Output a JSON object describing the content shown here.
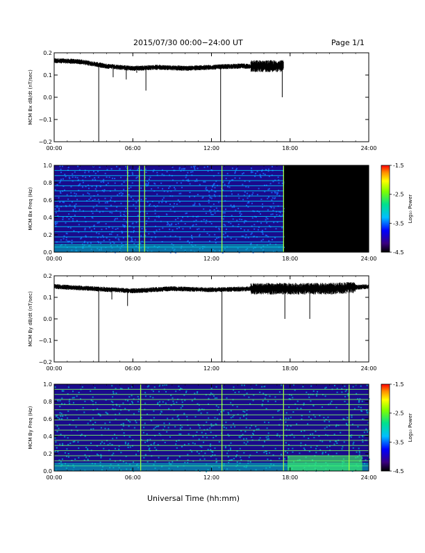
{
  "header": {
    "date_range": "2015/07/30  00:00−24:00 UT",
    "page": "Page 1/1"
  },
  "x_axis": {
    "tick_labels": [
      "00:00",
      "06:00",
      "12:00",
      "18:00",
      "24:00"
    ],
    "title": "Universal Time (hh:mm)",
    "range_hours": [
      0,
      24
    ]
  },
  "colors": {
    "trace": "#000000",
    "spectrogram_bg": "#1a0a8c",
    "no_data": "#000000"
  },
  "colorbar": {
    "label": "Log₁₀ Power",
    "tick_labels": [
      "-1.5",
      "-2.5",
      "-3.5",
      "-4.5"
    ],
    "range": [
      -4.5,
      -1.5
    ]
  },
  "chart_data": [
    {
      "type": "line",
      "ylabel": "MCM Bx dB/dt (nT/sec)",
      "ylim": [
        -0.2,
        0.2
      ],
      "yticks": [
        "0.2",
        "0.1",
        "0.0",
        "−0.1",
        "−0.2"
      ],
      "data_end_hour": 17.5,
      "baseline_points": [
        [
          0,
          0.165
        ],
        [
          2,
          0.16
        ],
        [
          4,
          0.14
        ],
        [
          6,
          0.13
        ],
        [
          8,
          0.135
        ],
        [
          10,
          0.13
        ],
        [
          12,
          0.135
        ],
        [
          14,
          0.14
        ],
        [
          16,
          0.14
        ],
        [
          17.5,
          0.14
        ]
      ],
      "spikes": [
        [
          3.4,
          -0.2
        ],
        [
          4.5,
          0.09
        ],
        [
          5.5,
          0.08
        ],
        [
          6.3,
          0.11
        ],
        [
          7,
          0.03
        ],
        [
          12.7,
          -0.2
        ],
        [
          17.4,
          0.0
        ]
      ]
    },
    {
      "type": "heatmap",
      "ylabel": "MCM Bx Freq (Hz)",
      "ylim": [
        0.0,
        1.0
      ],
      "yticks": [
        "1.0",
        "0.8",
        "0.6",
        "0.4",
        "0.2",
        "0.0"
      ],
      "data_end_hour": 17.5,
      "vertical_lines_hours": [
        5.6,
        6.5,
        6.9,
        12.8,
        17.5
      ]
    },
    {
      "type": "line",
      "ylabel": "MCM By dB/dt (nT/sec)",
      "ylim": [
        -0.2,
        0.2
      ],
      "yticks": [
        "0.2",
        "0.1",
        "0.0",
        "−0.1",
        "−0.2"
      ],
      "data_end_hour": 24,
      "baseline_points": [
        [
          0,
          0.15
        ],
        [
          3,
          0.14
        ],
        [
          6,
          0.13
        ],
        [
          9,
          0.14
        ],
        [
          12,
          0.135
        ],
        [
          15,
          0.14
        ],
        [
          18,
          0.14
        ],
        [
          21,
          0.14
        ],
        [
          24,
          0.15
        ]
      ],
      "spikes": [
        [
          3.4,
          -0.2
        ],
        [
          4.4,
          0.09
        ],
        [
          5.6,
          0.06
        ],
        [
          12.8,
          -0.2
        ],
        [
          17.6,
          0.0
        ],
        [
          19.5,
          0.0
        ],
        [
          22.5,
          -0.2
        ]
      ]
    },
    {
      "type": "heatmap",
      "ylabel": "MCM By Freq (Hz)",
      "ylim": [
        0.0,
        1.0
      ],
      "yticks": [
        "1.0",
        "0.8",
        "0.6",
        "0.4",
        "0.2",
        "0.0"
      ],
      "data_end_hour": 24,
      "vertical_lines_hours": [
        6.6,
        12.8,
        17.5,
        22.5
      ]
    }
  ]
}
